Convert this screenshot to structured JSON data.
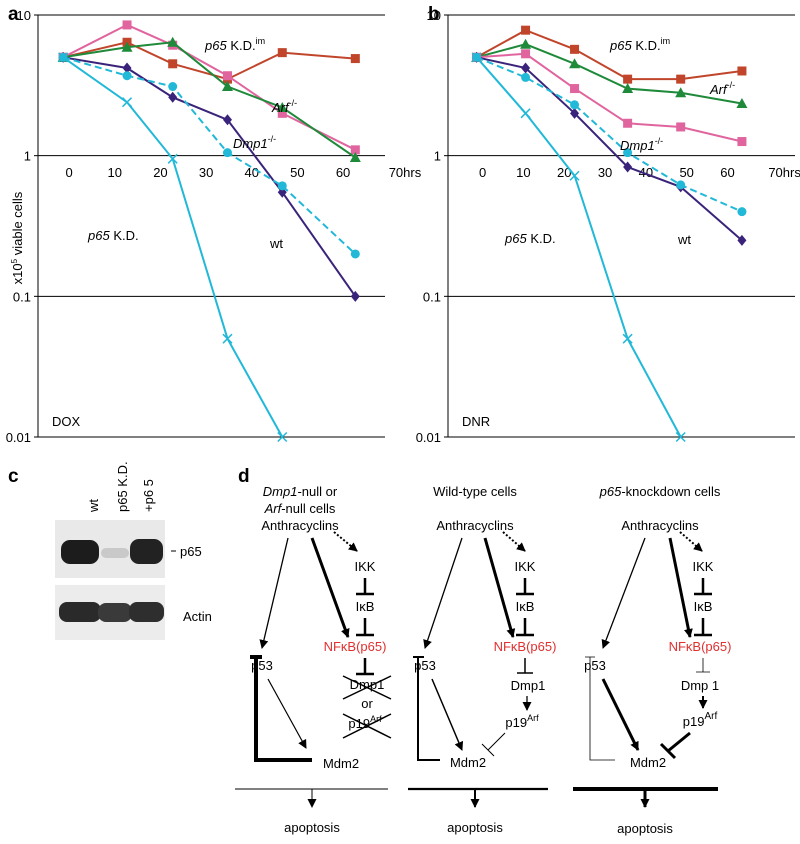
{
  "chart_data": [
    {
      "type": "line",
      "label": "a",
      "ylabel": [
        "x10",
        "5",
        " viable cells"
      ],
      "x": [
        0,
        14,
        24,
        36,
        48,
        64
      ],
      "xlim": [
        -5.5,
        70.5
      ],
      "xticks": [
        0,
        10,
        20,
        30,
        40,
        50,
        60,
        {
          "value": 70,
          "label": "70hrs"
        }
      ],
      "ylim": [
        0.01,
        10
      ],
      "yticks": [
        0.01,
        0.1,
        1,
        10
      ],
      "log_y": true,
      "grid": true,
      "series": [
        {
          "color": "#c0452a",
          "marker": "square",
          "values": [
            5,
            6.4,
            4.5,
            3.5,
            5.4,
            4.9
          ]
        },
        {
          "color": "#e0649e",
          "marker": "square",
          "values": [
            5,
            8.5,
            6.1,
            3.7,
            2.0,
            1.1
          ]
        },
        {
          "color": "#1e8a3a",
          "marker": "triangle",
          "values": [
            5,
            5.9,
            6.4,
            3.1,
            2.2,
            0.97
          ]
        },
        {
          "color": "#3a237a",
          "marker": "diamond",
          "values": [
            5,
            4.2,
            2.6,
            1.8,
            0.55,
            0.1
          ]
        },
        {
          "color": "#22b8d8",
          "marker": "circle",
          "dash": true,
          "values": [
            5,
            3.7,
            3.1,
            1.05,
            0.61,
            0.2
          ]
        },
        {
          "color": "#22b8d8",
          "marker": "x",
          "values": [
            5,
            2.4,
            0.95,
            0.05,
            0.01,
            null
          ]
        }
      ],
      "annotations": [
        [
          "p65",
          " K.D.",
          "im"
        ],
        [
          "Arf",
          "-/-"
        ],
        [
          "Dmp1",
          "-/-"
        ],
        [
          "p65",
          " K.D."
        ],
        [
          "wt"
        ],
        [
          "DOX"
        ]
      ]
    },
    {
      "type": "line",
      "label": "b",
      "x": [
        0,
        12,
        24,
        37,
        50,
        65
      ],
      "xlim": [
        -7,
        78
      ],
      "xticks": [
        0,
        10,
        20,
        30,
        40,
        50,
        60,
        {
          "value": 70,
          "label": "70hrs"
        }
      ],
      "ylim": [
        0.01,
        10
      ],
      "yticks": [
        0.01,
        0.1,
        1,
        10
      ],
      "log_y": true,
      "grid": true,
      "series": [
        {
          "color": "#c0452a",
          "marker": "square",
          "values": [
            5,
            7.8,
            5.7,
            3.5,
            3.5,
            4.0
          ]
        },
        {
          "color": "#1e8a3a",
          "marker": "triangle",
          "values": [
            5,
            6.2,
            4.5,
            3.0,
            2.8,
            2.35
          ]
        },
        {
          "color": "#e0649e",
          "marker": "square",
          "values": [
            5,
            5.3,
            3.0,
            1.7,
            1.6,
            1.26
          ]
        },
        {
          "color": "#3a237a",
          "marker": "diamond",
          "values": [
            5,
            4.2,
            2.0,
            0.83,
            0.6,
            0.25
          ]
        },
        {
          "color": "#22b8d8",
          "marker": "circle",
          "dash": true,
          "values": [
            5,
            3.6,
            2.3,
            1.05,
            0.62,
            0.4
          ]
        },
        {
          "color": "#22b8d8",
          "marker": "x",
          "values": [
            5,
            2.0,
            0.72,
            0.05,
            0.01,
            null
          ]
        }
      ],
      "annotations": [
        [
          "p65",
          " K.D.",
          "im"
        ],
        [
          "Arf",
          "-/-"
        ],
        [
          "Dmp1",
          "-/-"
        ],
        [
          "p65",
          " K.D."
        ],
        [
          "wt"
        ],
        [
          "DNR"
        ]
      ]
    }
  ],
  "blot": {
    "label": "c",
    "lanes": [
      "wt",
      "p65 K.D.",
      "+p6 5"
    ],
    "bands": [
      "p65",
      "Actin"
    ]
  },
  "diagram": {
    "label": "d",
    "columns": [
      {
        "header": [
          [
            "Dmp1",
            "-null or"
          ],
          [
            "Arf",
            "-null cells"
          ]
        ],
        "drug": "Anthracyclins",
        "ikk": "IKK",
        "ikb": "IκB",
        "nfkb": "NFκB(p65)",
        "p53": "p53",
        "dmp1": "Dmp1",
        "or": "or",
        "p19": [
          "p19",
          "Arf"
        ],
        "mdm2": "Mdm2",
        "outcome": "apoptosis"
      },
      {
        "header": [
          [
            "Wild-type cells"
          ]
        ],
        "drug": "Anthracyclins",
        "ikk": "IKK",
        "ikb": "IκB",
        "nfkb": "NFκB(p65)",
        "p53": "p53",
        "dmp1": "Dmp1",
        "p19": [
          "p19",
          "Arf"
        ],
        "mdm2": "Mdm2",
        "outcome": "apoptosis"
      },
      {
        "header": [
          [
            "p65",
            "-knockdown cells"
          ]
        ],
        "drug": "Anthracyclins",
        "ikk": "IKK",
        "ikb": "IκB",
        "nfkb": "NFκB(p65)",
        "p53": "p53",
        "dmp1": "Dmp 1",
        "p19": [
          "p19",
          "Arf"
        ],
        "mdm2": "Mdm2",
        "outcome": "apoptosis"
      }
    ]
  }
}
